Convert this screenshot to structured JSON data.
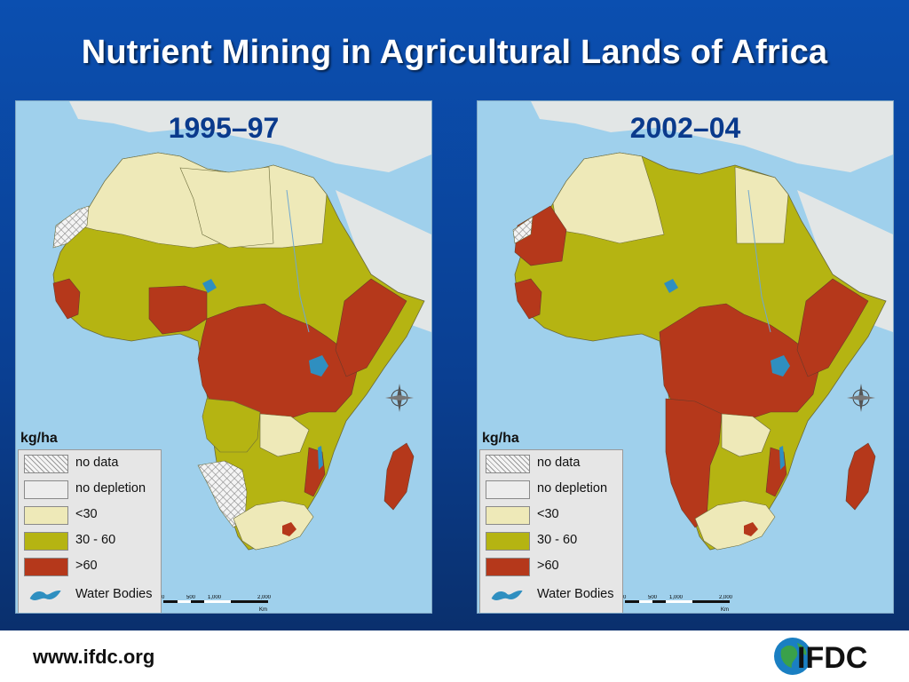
{
  "title": "Nutrient Mining in Agricultural Lands of Africa",
  "panels": [
    {
      "period": "1995–97"
    },
    {
      "period": "2002–04"
    }
  ],
  "legend": {
    "unit": "kg/ha",
    "items": [
      {
        "label": "no data",
        "pattern": "crosshatch"
      },
      {
        "label": "no depletion",
        "color": "#ededed"
      },
      {
        "label": "<30",
        "color": "#eee9b8"
      },
      {
        "label": "30 - 60",
        "color": "#b5b412"
      },
      {
        "label": ">60",
        "color": "#b5381b"
      },
      {
        "label": "Water Bodies",
        "color": "#2f8fc0"
      }
    ]
  },
  "scale": {
    "ticks": [
      "0",
      "500",
      "1,000",
      "2,000"
    ],
    "unit": "Km"
  },
  "colors": {
    "background": "#0b4fb0",
    "ocean": "#9fd0ec",
    "land_outside": "#e2e6e6"
  },
  "footer": {
    "url": "www.ifdc.org",
    "logo_text": "IFDC"
  }
}
